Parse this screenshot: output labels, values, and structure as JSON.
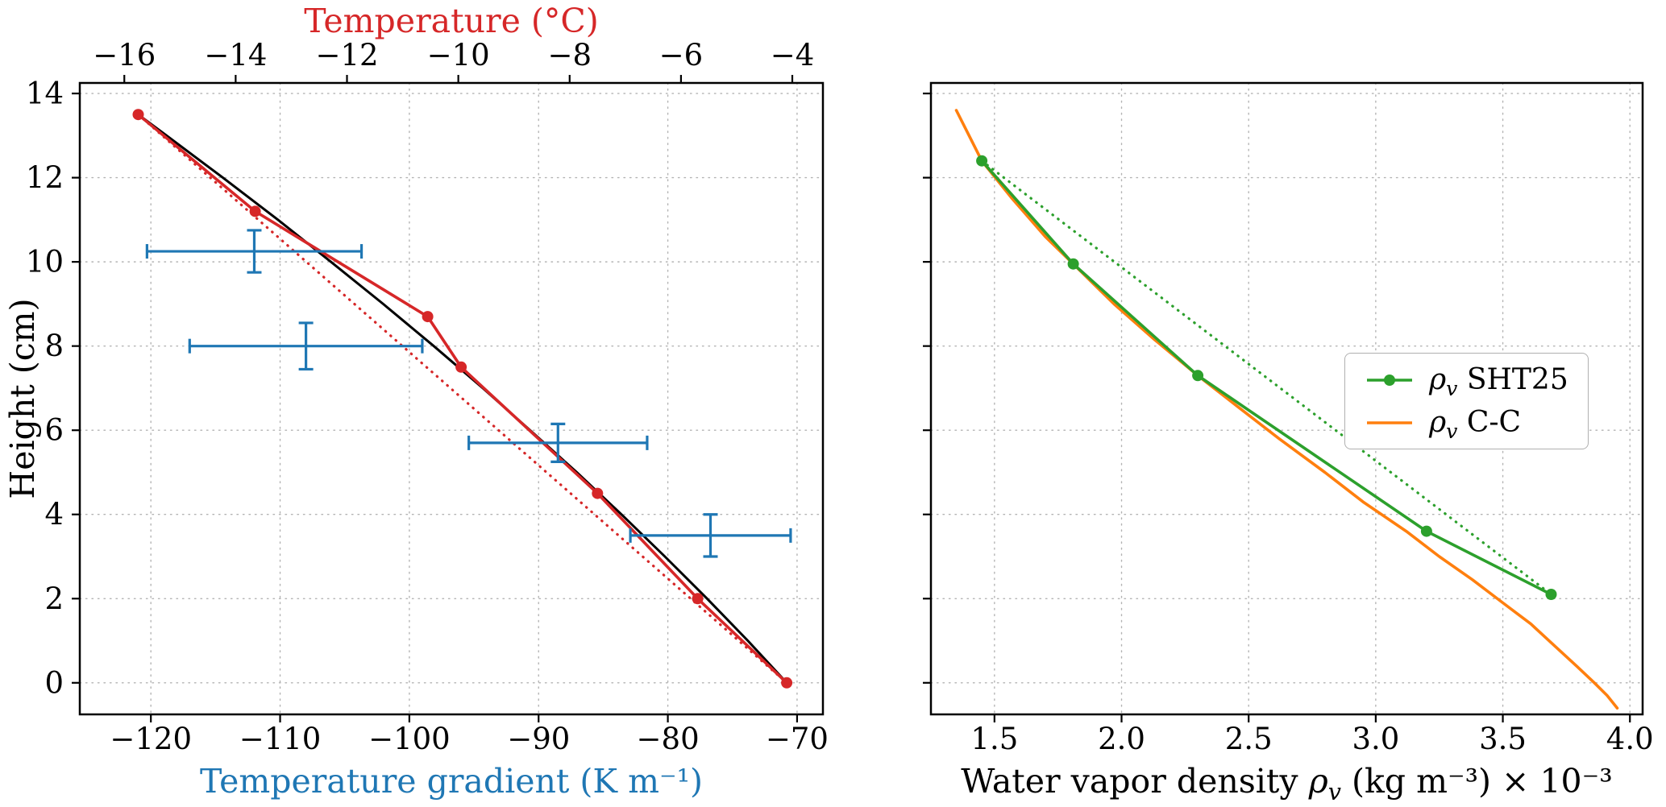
{
  "chart_data": [
    {
      "type": "line",
      "panel": "left",
      "ylabel": "Height (cm)",
      "xlabel_top": "Temperature (°C)",
      "xlabel_top_color": "#d62728",
      "xlabel_bottom": "Temperature gradient (K m⁻¹)",
      "xlabel_bottom_color": "#1f77b4",
      "ylim": [
        -0.75,
        14.25
      ],
      "yticks": [
        0,
        2,
        4,
        6,
        8,
        10,
        12,
        14
      ],
      "ytick_labels": [
        "0",
        "2",
        "4",
        "6",
        "8",
        "10",
        "12",
        "14"
      ],
      "x_bottom": {
        "lim": [
          -125.5,
          -68
        ],
        "ticks": [
          -120,
          -110,
          -100,
          -90,
          -80,
          -70
        ],
        "labels": [
          "−120",
          "−110",
          "−100",
          "−90",
          "−80",
          "−70"
        ]
      },
      "x_top": {
        "lim": [
          -16.8,
          -3.45
        ],
        "ticks": [
          -16,
          -14,
          -12,
          -10,
          -8,
          -6,
          -4
        ],
        "labels": [
          "−16",
          "−14",
          "−12",
          "−10",
          "−8",
          "−6",
          "−4"
        ]
      },
      "grid": "dotted",
      "series": [
        {
          "name": "temperature-linear-dotted",
          "axis": "top",
          "color": "#d62728",
          "dash": "dotted",
          "width": 3.2,
          "x": [
            -15.75,
            -4.1
          ],
          "y": [
            13.5,
            0
          ]
        },
        {
          "name": "temperature-fit",
          "axis": "top",
          "color": "#000000",
          "dash": "solid",
          "width": 3.0,
          "x": [
            -4.1,
            -4.8,
            -5.53,
            -6.29,
            -7.07,
            -7.87,
            -8.71,
            -9.56,
            -10.44,
            -11.35,
            -12.29,
            -13.24,
            -14.23,
            -15.24,
            -15.75
          ],
          "y": [
            0,
            1,
            2,
            3,
            4,
            5,
            6,
            7,
            8,
            9,
            10,
            11,
            12,
            13,
            13.5
          ]
        },
        {
          "name": "temperature-profile",
          "axis": "top",
          "color": "#d62728",
          "dash": "solid",
          "width": 3.6,
          "marker": 7,
          "x": [
            -15.75,
            -13.65,
            -10.55,
            -9.95,
            -7.5,
            -5.7,
            -4.1
          ],
          "y": [
            13.5,
            11.2,
            8.7,
            7.5,
            4.5,
            2.0,
            0.0
          ]
        }
      ],
      "errorbars": {
        "name": "temperature-gradient",
        "axis": "bottom",
        "color": "#1f77b4",
        "width": 3.2,
        "points": [
          {
            "x": -112.0,
            "y": 10.25,
            "xerr": 8.3,
            "yerr": 0.5
          },
          {
            "x": -108.0,
            "y": 8.0,
            "xerr": 9.0,
            "yerr": 0.55
          },
          {
            "x": -88.5,
            "y": 5.7,
            "xerr": 6.9,
            "yerr": 0.45
          },
          {
            "x": -76.7,
            "y": 3.5,
            "xerr": 6.2,
            "yerr": 0.5
          }
        ]
      }
    },
    {
      "type": "line",
      "panel": "right",
      "xlabel_parts": {
        "pre": "Water vapor density ",
        "rho": "ρ",
        "sub": "v",
        "post": " (kg m⁻³) × 10⁻³"
      },
      "xlim": [
        1.25,
        4.05
      ],
      "xticks": [
        1.5,
        2.0,
        2.5,
        3.0,
        3.5,
        4.0
      ],
      "xtick_labels": [
        "1.5",
        "2.0",
        "2.5",
        "3.0",
        "3.5",
        "4.0"
      ],
      "ylim": [
        -0.75,
        14.25
      ],
      "yticks": [
        0,
        2,
        4,
        6,
        8,
        10,
        12,
        14
      ],
      "grid": "dotted",
      "series": [
        {
          "name": "rho-sht25-dotted",
          "color": "#2ca02c",
          "dash": "dotted",
          "width": 3.2,
          "x": [
            1.45,
            3.69
          ],
          "y": [
            12.4,
            2.1
          ]
        },
        {
          "name": "rho-cc",
          "color": "#ff7f0e",
          "dash": "solid",
          "width": 3.6,
          "x": [
            1.35,
            1.4,
            1.45,
            1.57,
            1.7,
            1.81,
            1.97,
            2.13,
            2.3,
            2.47,
            2.62,
            2.8,
            2.95,
            3.12,
            3.25,
            3.38,
            3.5,
            3.61,
            3.7,
            3.79,
            3.86,
            3.91,
            3.95
          ],
          "y": [
            13.6,
            13.0,
            12.4,
            11.5,
            10.6,
            9.95,
            9.0,
            8.15,
            7.3,
            6.5,
            5.8,
            5.0,
            4.3,
            3.6,
            3.0,
            2.45,
            1.9,
            1.4,
            0.9,
            0.4,
            0.0,
            -0.3,
            -0.6
          ]
        },
        {
          "name": "rho-sht25",
          "color": "#2ca02c",
          "dash": "solid",
          "width": 3.6,
          "marker": 7,
          "x": [
            1.45,
            1.81,
            2.3,
            3.2,
            3.69
          ],
          "y": [
            12.4,
            9.95,
            7.3,
            3.6,
            2.1
          ]
        }
      ],
      "legend": [
        {
          "rho": "ρ",
          "sub": "v",
          "label": " SHT25",
          "color": "#2ca02c",
          "marker": true
        },
        {
          "rho": "ρ",
          "sub": "v",
          "label": " C-C",
          "color": "#ff7f0e",
          "marker": false
        }
      ]
    }
  ]
}
